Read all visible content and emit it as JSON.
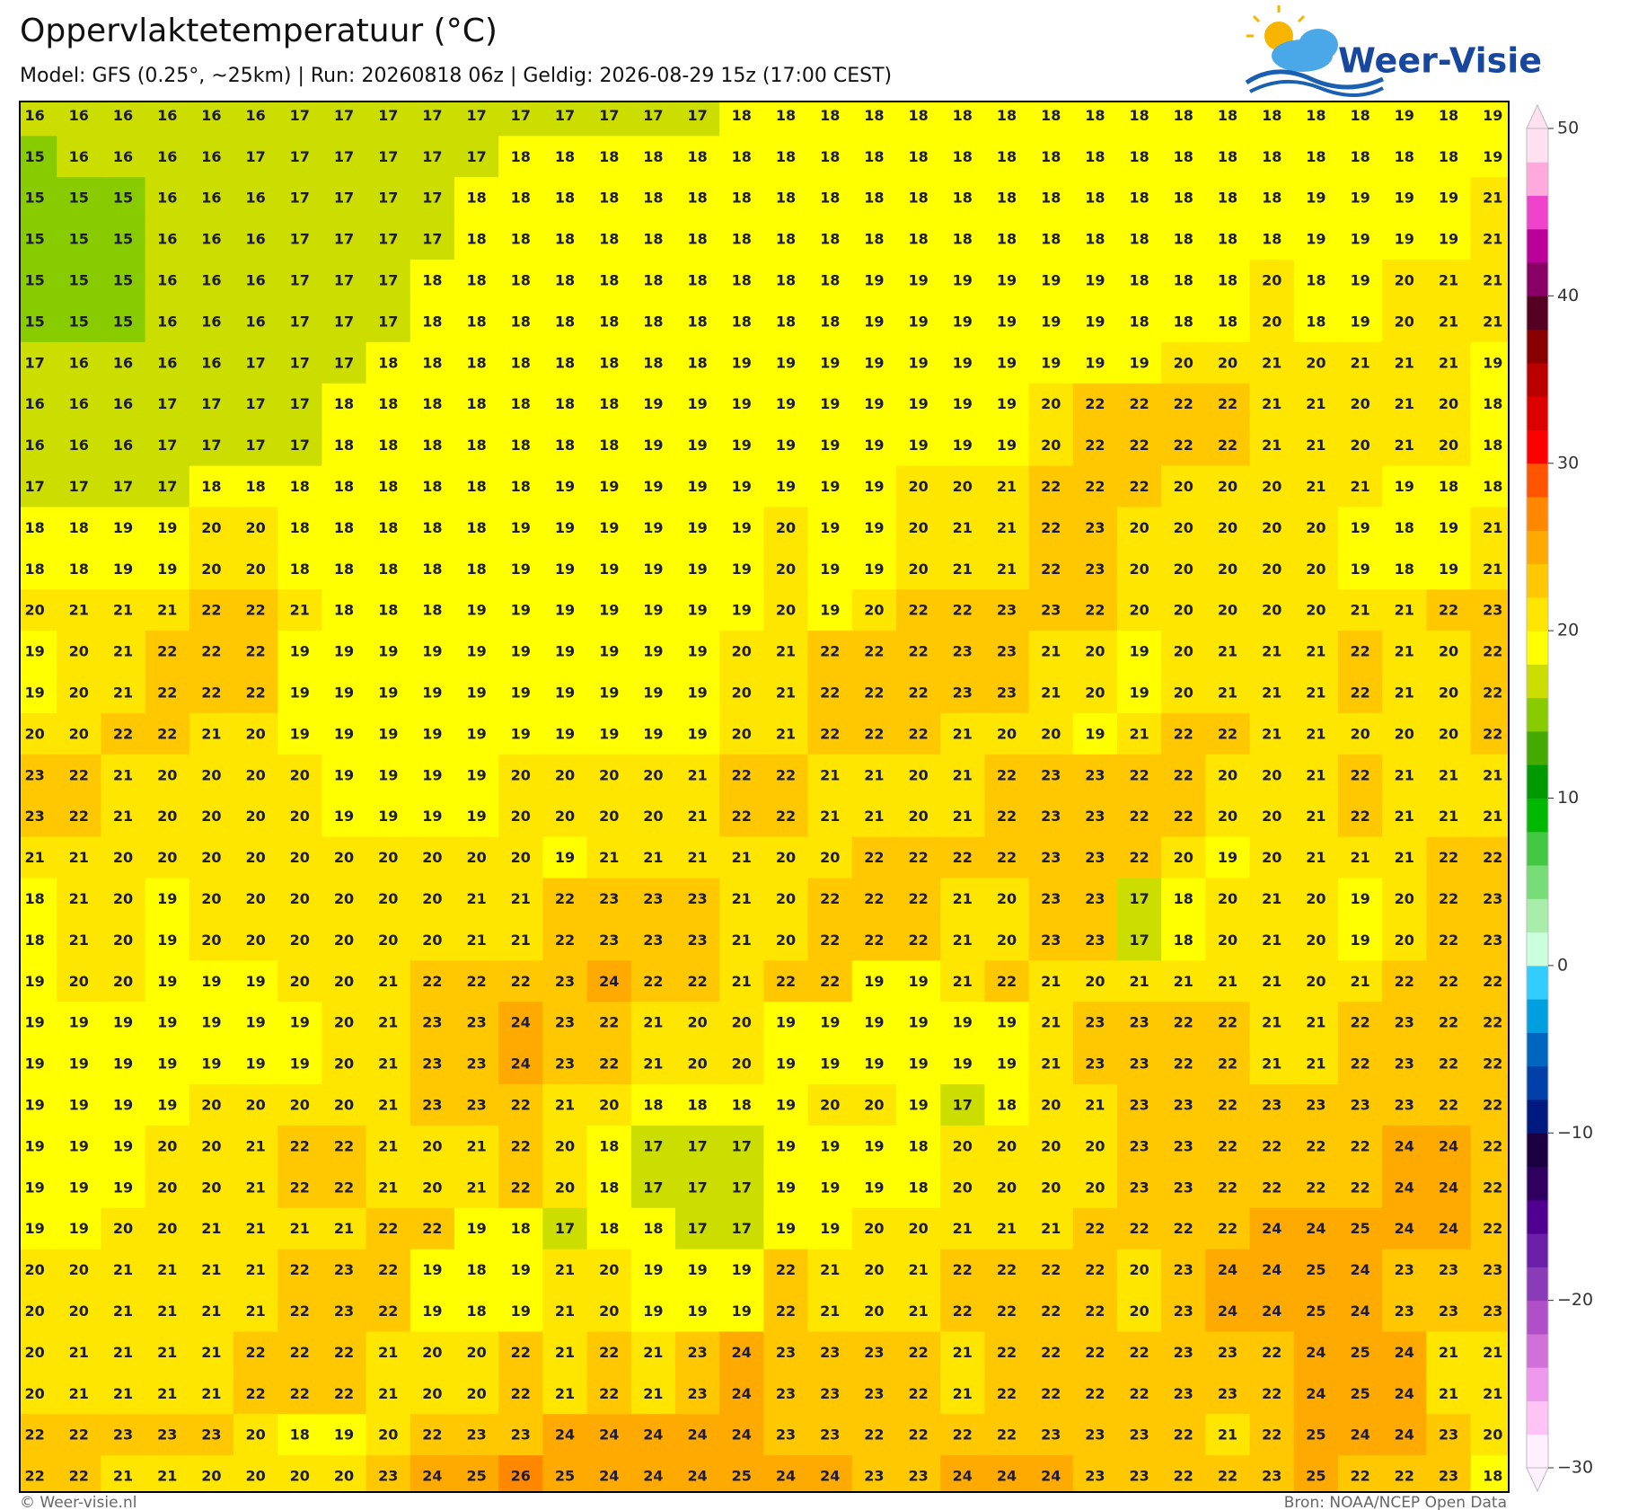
{
  "header": {
    "title": "Oppervlaktetemperatuur (°C)",
    "subtitle": "Model: GFS (0.25°, ~25km)  |  Run: 20260818 06z  |  Geldig: 2026-08-29 15z (17:00 CEST)",
    "logo": "Weer-Visie"
  },
  "footer": {
    "left": "© Weer-visie.nl",
    "right": "Bron: NOAA/NCEP Open Data"
  },
  "map": {
    "text_color": "#1c1c3a",
    "values": [
      [
        16,
        16,
        16,
        16,
        16,
        16,
        17,
        17,
        17,
        17,
        17,
        17,
        17,
        17,
        17,
        17,
        18,
        18,
        18,
        18,
        18,
        18,
        18,
        18,
        18,
        18,
        18,
        18,
        18,
        18,
        18,
        19,
        18,
        19
      ],
      [
        15,
        16,
        16,
        16,
        16,
        17,
        17,
        17,
        17,
        17,
        17,
        18,
        18,
        18,
        18,
        18,
        18,
        18,
        18,
        18,
        18,
        18,
        18,
        18,
        18,
        18,
        18,
        18,
        18,
        18,
        18,
        18,
        18,
        19
      ],
      [
        15,
        15,
        15,
        16,
        16,
        16,
        17,
        17,
        17,
        17,
        18,
        18,
        18,
        18,
        18,
        18,
        18,
        18,
        18,
        18,
        18,
        18,
        18,
        18,
        18,
        18,
        18,
        18,
        18,
        19,
        19,
        19,
        19,
        21
      ],
      [
        15,
        15,
        15,
        16,
        16,
        16,
        17,
        17,
        17,
        17,
        18,
        18,
        18,
        18,
        18,
        18,
        18,
        18,
        18,
        18,
        18,
        18,
        18,
        18,
        18,
        18,
        18,
        18,
        18,
        19,
        19,
        19,
        19,
        21
      ],
      [
        15,
        15,
        15,
        16,
        16,
        16,
        17,
        17,
        17,
        18,
        18,
        18,
        18,
        18,
        18,
        18,
        18,
        18,
        18,
        19,
        19,
        19,
        19,
        19,
        19,
        18,
        18,
        18,
        20,
        18,
        19,
        20,
        21,
        21
      ],
      [
        15,
        15,
        15,
        16,
        16,
        16,
        17,
        17,
        17,
        18,
        18,
        18,
        18,
        18,
        18,
        18,
        18,
        18,
        18,
        19,
        19,
        19,
        19,
        19,
        19,
        18,
        18,
        18,
        20,
        18,
        19,
        20,
        21,
        21
      ],
      [
        17,
        16,
        16,
        16,
        16,
        17,
        17,
        17,
        18,
        18,
        18,
        18,
        18,
        18,
        18,
        18,
        19,
        19,
        19,
        19,
        19,
        19,
        19,
        19,
        19,
        19,
        20,
        20,
        21,
        20,
        21,
        21,
        21,
        19
      ],
      [
        16,
        16,
        16,
        17,
        17,
        17,
        17,
        18,
        18,
        18,
        18,
        18,
        18,
        18,
        19,
        19,
        19,
        19,
        19,
        19,
        19,
        19,
        19,
        20,
        22,
        22,
        22,
        22,
        21,
        21,
        20,
        21,
        20,
        18
      ],
      [
        16,
        16,
        16,
        17,
        17,
        17,
        17,
        18,
        18,
        18,
        18,
        18,
        18,
        18,
        19,
        19,
        19,
        19,
        19,
        19,
        19,
        19,
        19,
        20,
        22,
        22,
        22,
        22,
        21,
        21,
        20,
        21,
        20,
        18
      ],
      [
        17,
        17,
        17,
        17,
        18,
        18,
        18,
        18,
        18,
        18,
        18,
        18,
        19,
        19,
        19,
        19,
        19,
        19,
        19,
        19,
        20,
        20,
        21,
        22,
        22,
        22,
        20,
        20,
        20,
        21,
        21,
        19,
        18,
        18
      ],
      [
        18,
        18,
        19,
        19,
        20,
        20,
        18,
        18,
        18,
        18,
        18,
        19,
        19,
        19,
        19,
        19,
        19,
        20,
        19,
        19,
        20,
        21,
        21,
        22,
        23,
        20,
        20,
        20,
        20,
        20,
        19,
        18,
        19,
        21
      ],
      [
        18,
        18,
        19,
        19,
        20,
        20,
        18,
        18,
        18,
        18,
        18,
        19,
        19,
        19,
        19,
        19,
        19,
        20,
        19,
        19,
        20,
        21,
        21,
        22,
        23,
        20,
        20,
        20,
        20,
        20,
        19,
        18,
        19,
        21
      ],
      [
        20,
        21,
        21,
        21,
        22,
        22,
        21,
        18,
        18,
        18,
        19,
        19,
        19,
        19,
        19,
        19,
        19,
        20,
        19,
        20,
        22,
        22,
        23,
        23,
        22,
        20,
        20,
        20,
        20,
        20,
        21,
        21,
        22,
        23
      ],
      [
        19,
        20,
        21,
        22,
        22,
        22,
        19,
        19,
        19,
        19,
        19,
        19,
        19,
        19,
        19,
        19,
        20,
        21,
        22,
        22,
        22,
        23,
        23,
        21,
        20,
        19,
        20,
        21,
        21,
        21,
        22,
        21,
        20,
        22
      ],
      [
        19,
        20,
        21,
        22,
        22,
        22,
        19,
        19,
        19,
        19,
        19,
        19,
        19,
        19,
        19,
        19,
        20,
        21,
        22,
        22,
        22,
        23,
        23,
        21,
        20,
        19,
        20,
        21,
        21,
        21,
        22,
        21,
        20,
        22
      ],
      [
        20,
        20,
        22,
        22,
        21,
        20,
        19,
        19,
        19,
        19,
        19,
        19,
        19,
        19,
        19,
        19,
        20,
        21,
        22,
        22,
        22,
        21,
        20,
        20,
        19,
        21,
        22,
        22,
        21,
        21,
        20,
        20,
        20,
        22
      ],
      [
        23,
        22,
        21,
        20,
        20,
        20,
        20,
        19,
        19,
        19,
        19,
        20,
        20,
        20,
        20,
        21,
        22,
        22,
        21,
        21,
        20,
        21,
        22,
        23,
        23,
        22,
        22,
        20,
        20,
        21,
        22,
        21,
        21,
        21
      ],
      [
        23,
        22,
        21,
        20,
        20,
        20,
        20,
        19,
        19,
        19,
        19,
        20,
        20,
        20,
        20,
        21,
        22,
        22,
        21,
        21,
        20,
        21,
        22,
        23,
        23,
        22,
        22,
        20,
        20,
        21,
        22,
        21,
        21,
        21
      ],
      [
        21,
        21,
        20,
        20,
        20,
        20,
        20,
        20,
        20,
        20,
        20,
        20,
        19,
        21,
        21,
        21,
        21,
        20,
        20,
        22,
        22,
        22,
        22,
        23,
        23,
        22,
        20,
        19,
        20,
        21,
        21,
        21,
        22,
        22
      ],
      [
        18,
        21,
        20,
        19,
        20,
        20,
        20,
        20,
        20,
        20,
        21,
        21,
        22,
        23,
        23,
        23,
        21,
        20,
        22,
        22,
        22,
        21,
        20,
        23,
        23,
        17,
        18,
        20,
        21,
        20,
        19,
        20,
        22,
        23
      ],
      [
        18,
        21,
        20,
        19,
        20,
        20,
        20,
        20,
        20,
        20,
        21,
        21,
        22,
        23,
        23,
        23,
        21,
        20,
        22,
        22,
        22,
        21,
        20,
        23,
        23,
        17,
        18,
        20,
        21,
        20,
        19,
        20,
        22,
        23
      ],
      [
        19,
        20,
        20,
        19,
        19,
        19,
        20,
        20,
        21,
        22,
        22,
        22,
        23,
        24,
        22,
        22,
        21,
        22,
        22,
        19,
        19,
        21,
        22,
        21,
        20,
        21,
        21,
        21,
        21,
        20,
        21,
        22,
        22,
        22
      ],
      [
        19,
        19,
        19,
        19,
        19,
        19,
        19,
        20,
        21,
        23,
        23,
        24,
        23,
        22,
        21,
        20,
        20,
        19,
        19,
        19,
        19,
        19,
        19,
        21,
        23,
        23,
        22,
        22,
        21,
        21,
        22,
        23,
        22,
        22
      ],
      [
        19,
        19,
        19,
        19,
        19,
        19,
        19,
        20,
        21,
        23,
        23,
        24,
        23,
        22,
        21,
        20,
        20,
        19,
        19,
        19,
        19,
        19,
        19,
        21,
        23,
        23,
        22,
        22,
        21,
        21,
        22,
        23,
        22,
        22
      ],
      [
        19,
        19,
        19,
        19,
        20,
        20,
        20,
        20,
        21,
        23,
        23,
        22,
        21,
        20,
        18,
        18,
        18,
        19,
        20,
        20,
        19,
        17,
        18,
        20,
        21,
        23,
        23,
        22,
        23,
        23,
        23,
        23,
        22,
        22
      ],
      [
        19,
        19,
        19,
        20,
        20,
        21,
        22,
        22,
        21,
        20,
        21,
        22,
        20,
        18,
        17,
        17,
        17,
        19,
        19,
        19,
        18,
        20,
        20,
        20,
        20,
        23,
        23,
        22,
        22,
        22,
        22,
        24,
        24,
        22
      ],
      [
        19,
        19,
        19,
        20,
        20,
        21,
        22,
        22,
        21,
        20,
        21,
        22,
        20,
        18,
        17,
        17,
        17,
        19,
        19,
        19,
        18,
        20,
        20,
        20,
        20,
        23,
        23,
        22,
        22,
        22,
        22,
        24,
        24,
        22
      ],
      [
        19,
        19,
        20,
        20,
        21,
        21,
        21,
        21,
        22,
        22,
        19,
        18,
        17,
        18,
        18,
        17,
        17,
        19,
        19,
        20,
        20,
        21,
        21,
        21,
        22,
        22,
        22,
        22,
        24,
        24,
        25,
        24,
        24,
        22
      ],
      [
        20,
        20,
        21,
        21,
        21,
        21,
        22,
        23,
        22,
        19,
        18,
        19,
        21,
        20,
        19,
        19,
        19,
        22,
        21,
        20,
        21,
        22,
        22,
        22,
        22,
        20,
        23,
        24,
        24,
        25,
        24,
        23,
        23,
        23
      ],
      [
        20,
        20,
        21,
        21,
        21,
        21,
        22,
        23,
        22,
        19,
        18,
        19,
        21,
        20,
        19,
        19,
        19,
        22,
        21,
        20,
        21,
        22,
        22,
        22,
        22,
        20,
        23,
        24,
        24,
        25,
        24,
        23,
        23,
        23
      ],
      [
        20,
        21,
        21,
        21,
        21,
        22,
        22,
        22,
        21,
        20,
        20,
        22,
        21,
        22,
        21,
        23,
        24,
        23,
        23,
        23,
        22,
        21,
        22,
        22,
        22,
        22,
        23,
        23,
        22,
        24,
        25,
        24,
        21,
        21
      ],
      [
        20,
        21,
        21,
        21,
        21,
        22,
        22,
        22,
        21,
        20,
        20,
        22,
        21,
        22,
        21,
        23,
        24,
        23,
        23,
        23,
        22,
        21,
        22,
        22,
        22,
        22,
        23,
        23,
        22,
        24,
        25,
        24,
        21,
        21
      ],
      [
        22,
        22,
        23,
        23,
        23,
        20,
        18,
        19,
        20,
        22,
        23,
        23,
        24,
        24,
        24,
        24,
        24,
        23,
        23,
        22,
        22,
        22,
        22,
        23,
        23,
        23,
        22,
        21,
        22,
        25,
        24,
        24,
        23,
        20
      ],
      [
        22,
        22,
        21,
        21,
        20,
        20,
        20,
        20,
        23,
        24,
        25,
        26,
        25,
        24,
        24,
        24,
        25,
        24,
        24,
        23,
        23,
        24,
        24,
        24,
        23,
        23,
        22,
        22,
        23,
        25,
        22,
        22,
        23,
        18
      ]
    ]
  },
  "colorbar": {
    "lim": [
      -30,
      50
    ],
    "ticks": [
      50,
      40,
      30,
      20,
      10,
      0,
      {
        "value": -10,
        "label": "−10"
      },
      {
        "value": -20,
        "label": "−20"
      },
      {
        "value": -30,
        "label": "−30"
      }
    ],
    "colors": [
      "#fff0ff",
      "#ffc4f5",
      "#ee99ee",
      "#d070d8",
      "#b050c8",
      "#8a3cb8",
      "#6a20a8",
      "#500090",
      "#300060",
      "#1a0040",
      "#001a80",
      "#0040a8",
      "#0066c0",
      "#00a0e0",
      "#33ccff",
      "#ccffdd",
      "#a8eeaa",
      "#77dd77",
      "#44c844",
      "#00b800",
      "#009900",
      "#44aa00",
      "#88cc00",
      "#ccdd00",
      "#ffff00",
      "#ffe600",
      "#ffc800",
      "#ffaa00",
      "#ff8800",
      "#ff5500",
      "#ff0000",
      "#dd0000",
      "#bb0000",
      "#880000",
      "#550022",
      "#880066",
      "#bb0099",
      "#ee44cc",
      "#ffaadd",
      "#ffe0f0"
    ]
  }
}
